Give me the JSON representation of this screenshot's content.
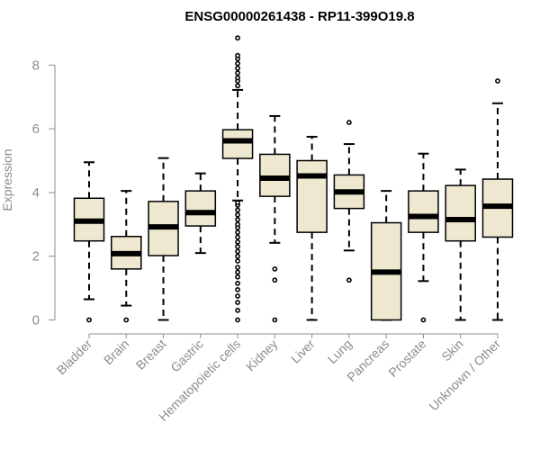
{
  "chart_data": {
    "type": "boxplot",
    "title": "ENSG00000261438 - RP11-399O19.8",
    "xlabel": "",
    "ylabel": "Expression",
    "ylim": [
      0,
      8.8
    ],
    "yticks": [
      0,
      2,
      4,
      6,
      8
    ],
    "grid": false,
    "box_fill": "#efe8d0",
    "categories": [
      "Bladder",
      "Brain",
      "Breast",
      "Gastric",
      "Hematopoietic cells",
      "Kidney",
      "Liver",
      "Lung",
      "Pancreas",
      "Prostate",
      "Skin",
      "Unknown / Other"
    ],
    "boxes": [
      {
        "name": "Bladder",
        "whisker_low": 0.65,
        "q1": 2.48,
        "median": 3.1,
        "q3": 3.82,
        "whisker_high": 4.95,
        "outliers": [
          0.0
        ]
      },
      {
        "name": "Brain",
        "whisker_low": 0.45,
        "q1": 1.6,
        "median": 2.08,
        "q3": 2.62,
        "whisker_high": 4.05,
        "outliers": [
          0.0
        ]
      },
      {
        "name": "Breast",
        "whisker_low": 0.0,
        "q1": 2.02,
        "median": 2.92,
        "q3": 3.72,
        "whisker_high": 5.08,
        "outliers": []
      },
      {
        "name": "Gastric",
        "whisker_low": 2.1,
        "q1": 2.95,
        "median": 3.37,
        "q3": 4.05,
        "whisker_high": 4.6,
        "outliers": []
      },
      {
        "name": "Hematopoietic cells",
        "whisker_low": 3.75,
        "q1": 5.07,
        "median": 5.62,
        "q3": 5.97,
        "whisker_high": 7.22,
        "outliers": [
          0.0,
          0.3,
          0.55,
          0.75,
          0.95,
          1.15,
          1.35,
          1.5,
          1.65,
          1.85,
          2.0,
          2.15,
          2.3,
          2.45,
          2.6,
          2.75,
          2.9,
          3.0,
          3.15,
          3.3,
          3.45,
          3.6,
          3.68,
          7.35,
          7.5,
          7.6,
          7.75,
          7.9,
          8.05,
          8.2,
          8.3,
          8.85
        ]
      },
      {
        "name": "Kidney",
        "whisker_low": 2.42,
        "q1": 3.88,
        "median": 4.45,
        "q3": 5.2,
        "whisker_high": 6.4,
        "outliers": [
          0.0,
          1.25,
          1.6
        ]
      },
      {
        "name": "Liver",
        "whisker_low": 0.0,
        "q1": 2.75,
        "median": 4.52,
        "q3": 5.0,
        "whisker_high": 5.75,
        "outliers": []
      },
      {
        "name": "Lung",
        "whisker_low": 2.18,
        "q1": 3.5,
        "median": 4.02,
        "q3": 4.55,
        "whisker_high": 5.52,
        "outliers": [
          1.25,
          6.2
        ]
      },
      {
        "name": "Pancreas",
        "whisker_low": 0.0,
        "q1": 0.0,
        "median": 1.5,
        "q3": 3.05,
        "whisker_high": 4.05,
        "outliers": []
      },
      {
        "name": "Prostate",
        "whisker_low": 1.22,
        "q1": 2.75,
        "median": 3.25,
        "q3": 4.05,
        "whisker_high": 5.22,
        "outliers": [
          0.0
        ]
      },
      {
        "name": "Skin",
        "whisker_low": 0.0,
        "q1": 2.48,
        "median": 3.15,
        "q3": 4.22,
        "whisker_high": 4.72,
        "outliers": []
      },
      {
        "name": "Unknown / Other",
        "whisker_low": 0.0,
        "q1": 2.6,
        "median": 3.57,
        "q3": 4.42,
        "whisker_high": 6.8,
        "outliers": [
          7.5
        ]
      }
    ]
  }
}
